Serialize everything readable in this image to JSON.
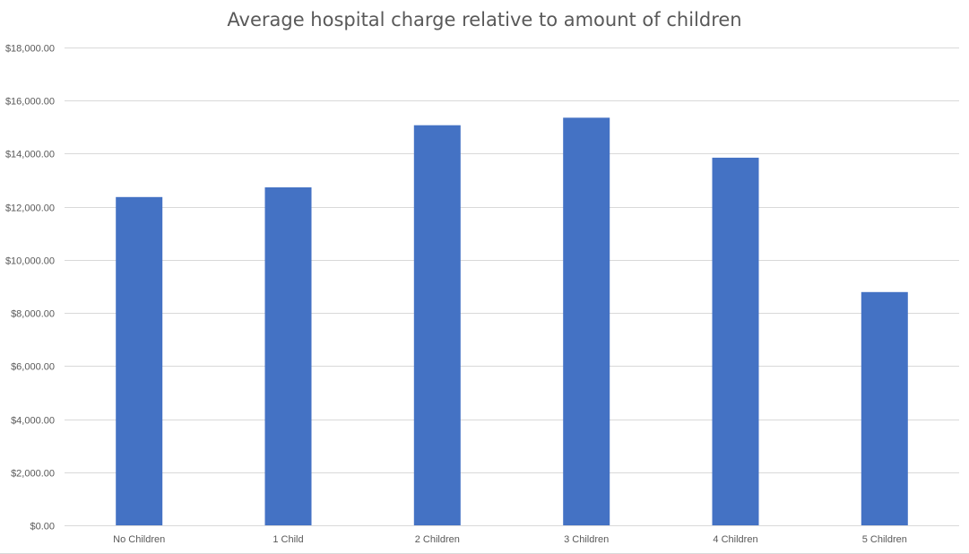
{
  "chart_data": {
    "type": "bar",
    "title": "Average hospital charge relative to amount of children",
    "xlabel": "",
    "ylabel": "",
    "categories": [
      "No Children",
      "1 Child",
      "2 Children",
      "3 Children",
      "4 Children",
      "5 Children"
    ],
    "values": [
      12365.98,
      12731.17,
      15073.56,
      15355.32,
      13850.66,
      8786.04
    ],
    "ylim": [
      0,
      18000
    ],
    "yticks": [
      0,
      2000,
      4000,
      6000,
      8000,
      10000,
      12000,
      14000,
      16000,
      18000
    ],
    "ytick_labels": [
      "$0.00",
      "$2,000.00",
      "$4,000.00",
      "$6,000.00",
      "$8,000.00",
      "$10,000.00",
      "$12,000.00",
      "$14,000.00",
      "$16,000.00",
      "$18,000.00"
    ],
    "grid": true,
    "legend": "none",
    "bar_color": "#4472C4",
    "grid_color": "#d9d9d9",
    "text_color": "#595959"
  }
}
